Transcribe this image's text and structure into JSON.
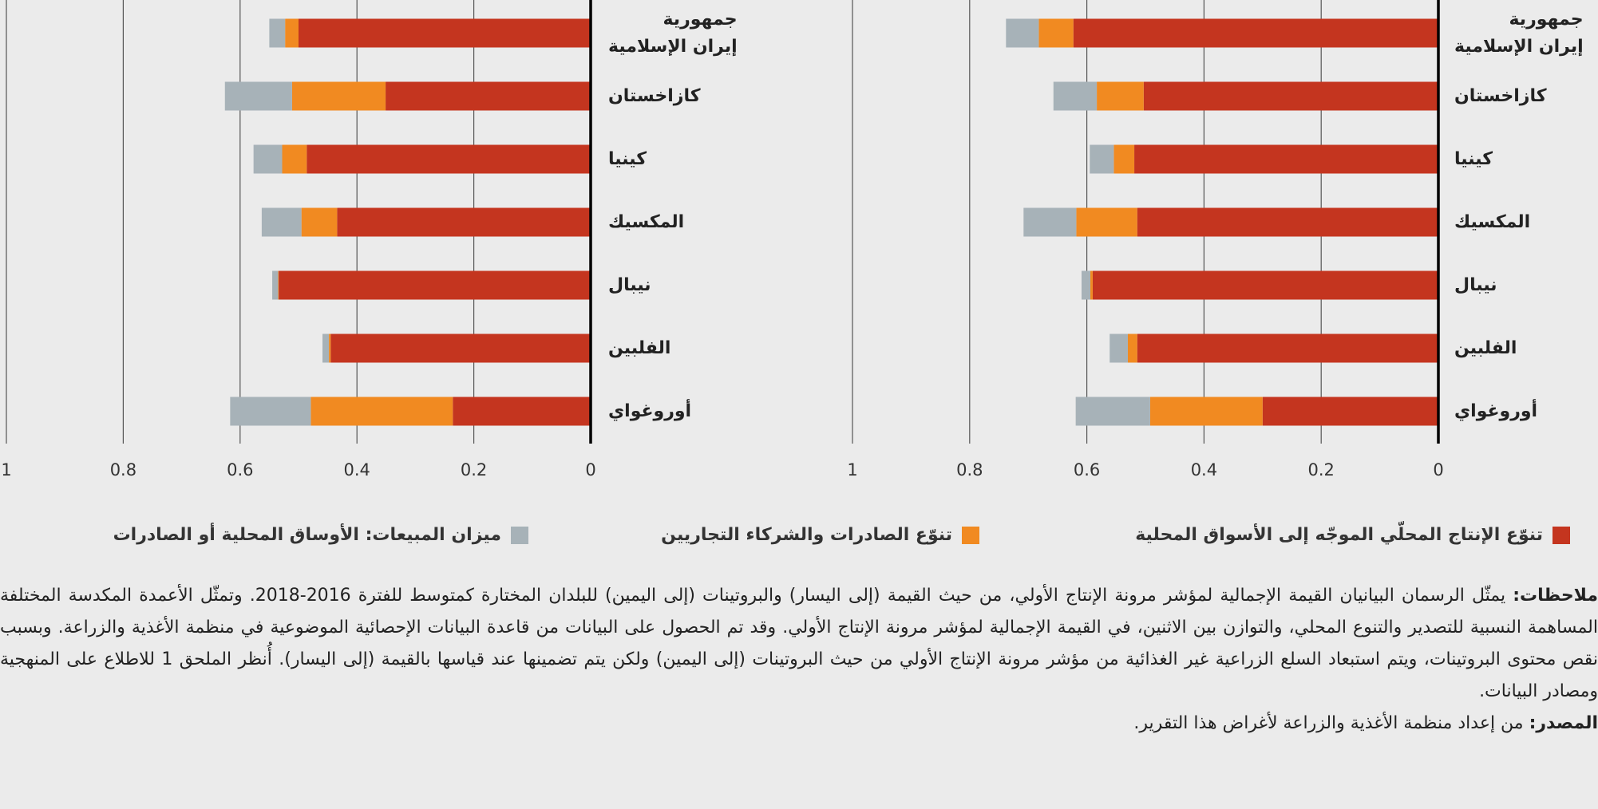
{
  "chart_data": [
    {
      "type": "bar",
      "orientation": "horizontal",
      "stacked": true,
      "categories": [
        "جمهورية\nإيران الإسلامية",
        "كازاخستان",
        "كينيا",
        "المكسيك",
        "نيبال",
        "الفلبين",
        "أوروغواي"
      ],
      "series": [
        {
          "name": "تنوّع الإنتاج المحلّي الموجّه إلى الأسواق المحلية",
          "color": "#c4351f",
          "values": [
            0.623,
            0.503,
            0.519,
            0.514,
            0.59,
            0.514,
            0.3
          ]
        },
        {
          "name": "تنوّع الصادرات والشركاء التجاريين",
          "color": "#f18a21",
          "values": [
            0.059,
            0.08,
            0.035,
            0.104,
            0.004,
            0.016,
            0.192
          ]
        },
        {
          "name": "ميزان المبيعات: الأوساق المحلية أو الصادرات",
          "color": "#a7b2b8",
          "values": [
            0.056,
            0.074,
            0.041,
            0.09,
            0.015,
            0.031,
            0.127
          ]
        }
      ],
      "xlim": [
        1,
        0
      ],
      "xticks": [
        1,
        0.8,
        0.6,
        0.4,
        0.2,
        0
      ],
      "grid": true
    },
    {
      "type": "bar",
      "orientation": "horizontal",
      "stacked": true,
      "categories": [
        "جمهورية\nإيران الإسلامية",
        "كازاخستان",
        "كينيا",
        "المكسيك",
        "نيبال",
        "الفلبين",
        "أوروغواي"
      ],
      "series": [
        {
          "color": "#c4351f",
          "values": [
            0.5,
            0.351,
            0.486,
            0.434,
            0.534,
            0.445,
            0.236
          ]
        },
        {
          "color": "#f18a21",
          "values": [
            0.023,
            0.16,
            0.042,
            0.061,
            0.001,
            0.003,
            0.243
          ]
        },
        {
          "color": "#a7b2b8",
          "values": [
            0.027,
            0.115,
            0.049,
            0.068,
            0.01,
            0.011,
            0.138
          ]
        }
      ],
      "xlim": [
        1,
        0
      ],
      "xticks": [
        1,
        0.8,
        0.6,
        0.4,
        0.2,
        0
      ],
      "grid": true
    }
  ],
  "notes": {
    "label": "ملاحظات:",
    "text": "يمثّل الرسمان البيانيان القيمة الإجمالية لمؤشر مرونة الإنتاج الأولي، من حيث القيمة (إلى اليسار) والبروتينات (إلى اليمين) للبلدان المختارة كمتوسط للفترة 2016-2018. وتمثّل الأعمدة المكدسة المختلفة المساهمة النسبية للتصدير والتنوع المحلي، والتوازن بين الاثنين، في القيمة الإجمالية لمؤشر مرونة الإنتاج الأولي. وقد تم الحصول على البيانات من قاعدة البيانات الإحصائية الموضوعية في منظمة الأغذية والزراعة. وبسبب نقص محتوى البروتينات، ويتم استبعاد السلع الزراعية غير الغذائية من مؤشر مرونة الإنتاج الأولي من حيث البروتينات (إلى اليمين) ولكن يتم تضمينها عند قياسها بالقيمة (إلى اليسار). أُنظر الملحق 1 للاطلاع على المنهجية ومصادر البيانات."
  },
  "source": {
    "label": "المصدر:",
    "text": "من إعداد منظمة الأغذية والزراعة لأغراض هذا التقرير."
  }
}
